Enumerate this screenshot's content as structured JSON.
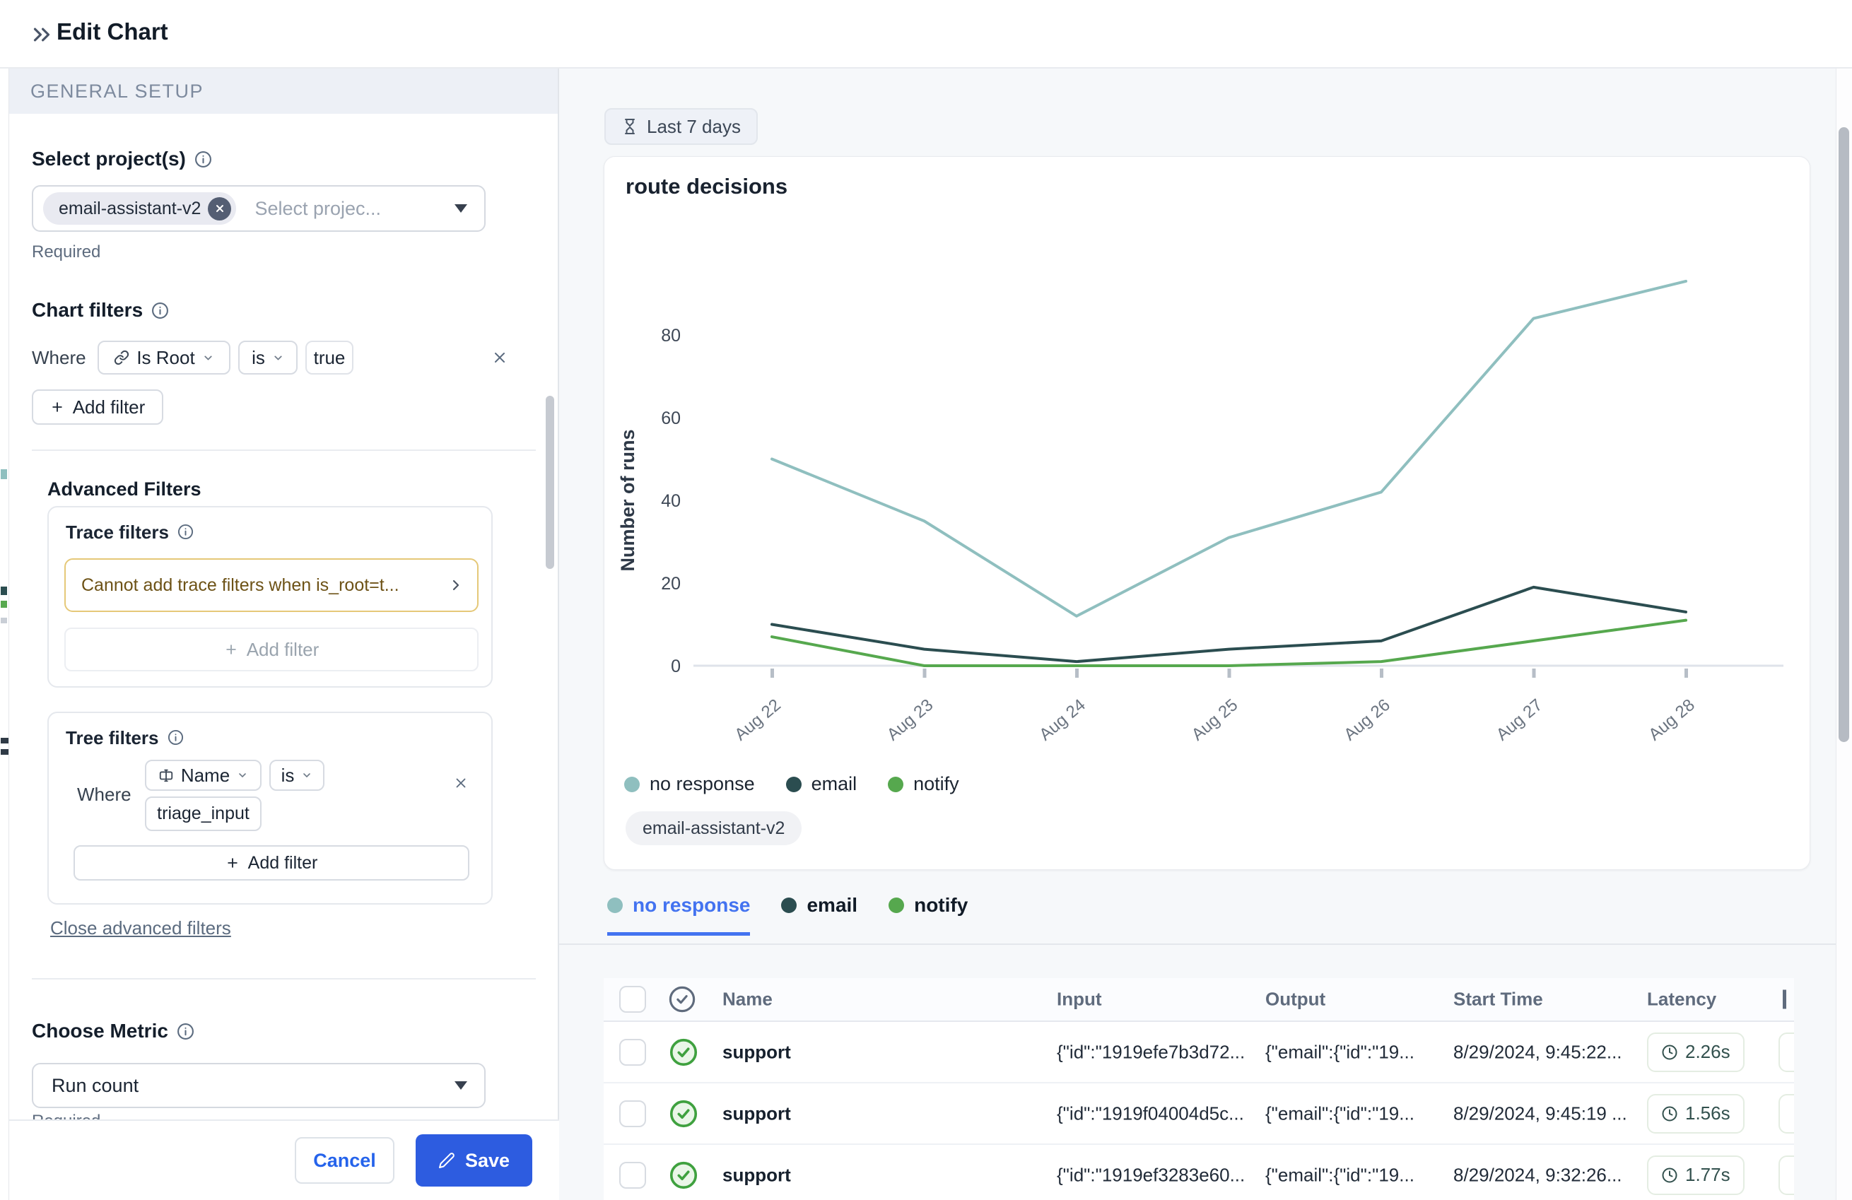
{
  "colors": {
    "accent_blue": "#4373f0",
    "save_blue": "#2d5ce0",
    "cancel_blue": "#2563eb",
    "warning_text": "#6d5216",
    "warning_border": "#e5c878",
    "success_green": "#3fa13f"
  },
  "header": {
    "title": "Edit Chart"
  },
  "sidebar": {
    "section_title": "GENERAL SETUP",
    "project": {
      "label": "Select project(s)",
      "chip": "email-assistant-v2",
      "placeholder": "Select projec...",
      "helper": "Required"
    },
    "chart_filters": {
      "label": "Chart filters",
      "where": "Where",
      "field": "Is Root",
      "operator": "is",
      "value": "true",
      "add_filter": "Add filter"
    },
    "advanced": {
      "title": "Advanced Filters",
      "trace": {
        "label": "Trace filters",
        "warning": "Cannot add trace filters when is_root=t...",
        "add_filter": "Add filter"
      },
      "tree": {
        "label": "Tree filters",
        "where": "Where",
        "field": "Name",
        "operator": "is",
        "value": "triage_input",
        "add_filter": "Add filter"
      },
      "close_link": "Close advanced filters"
    },
    "metric": {
      "label": "Choose Metric",
      "value": "Run count",
      "helper": "Required"
    },
    "footer": {
      "cancel": "Cancel",
      "save": "Save"
    }
  },
  "main": {
    "time_range": "Last 7 days",
    "project_chip": "email-assistant-v2",
    "tabs": [
      {
        "label": "no response",
        "active": true
      },
      {
        "label": "email",
        "active": false
      },
      {
        "label": "notify",
        "active": false
      }
    ],
    "table": {
      "headers": {
        "name": "Name",
        "input": "Input",
        "output": "Output",
        "start_time": "Start Time",
        "latency": "Latency"
      },
      "rows": [
        {
          "name": "support",
          "input": "{\"id\":\"1919efe7b3d72...",
          "output": "{\"email\":{\"id\":\"19...",
          "start_time": "8/29/2024, 9:45:22...",
          "latency": "2.26s"
        },
        {
          "name": "support",
          "input": "{\"id\":\"1919f04004d5c...",
          "output": "{\"email\":{\"id\":\"19...",
          "start_time": "8/29/2024, 9:45:19 ...",
          "latency": "1.56s"
        },
        {
          "name": "support",
          "input": "{\"id\":\"1919ef3283e60...",
          "output": "{\"email\":{\"id\":\"19...",
          "start_time": "8/29/2024, 9:32:26...",
          "latency": "1.77s"
        }
      ]
    }
  },
  "chart_data": {
    "type": "line",
    "title": "route decisions",
    "ylabel": "Number of runs",
    "x": [
      "Aug 22",
      "Aug 23",
      "Aug 24",
      "Aug 25",
      "Aug 26",
      "Aug 27",
      "Aug 28"
    ],
    "yticks": [
      0,
      20,
      40,
      60,
      80
    ],
    "ylim": [
      0,
      96
    ],
    "grid": false,
    "legend_position": "bottom",
    "series": [
      {
        "name": "no response",
        "color": "#8fbfbf",
        "values": [
          50,
          35,
          12,
          31,
          42,
          84,
          93
        ]
      },
      {
        "name": "email",
        "color": "#2b4d50",
        "values": [
          10,
          4,
          1,
          4,
          6,
          19,
          13
        ]
      },
      {
        "name": "notify",
        "color": "#56a84e",
        "values": [
          7,
          0,
          0,
          0,
          1,
          6,
          11
        ]
      }
    ]
  }
}
